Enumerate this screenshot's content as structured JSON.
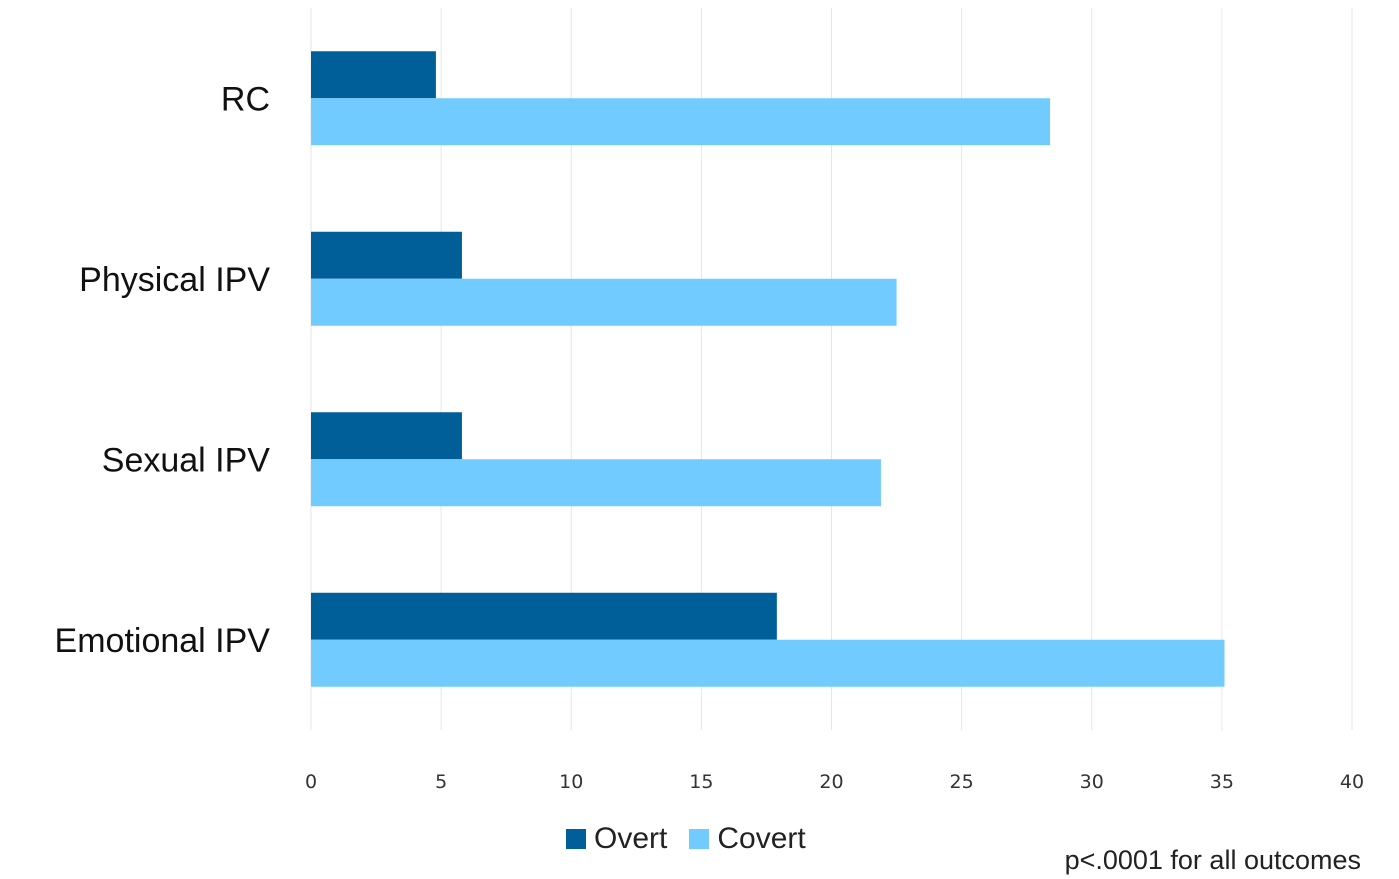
{
  "chart_data": {
    "type": "bar",
    "orientation": "horizontal",
    "categories": [
      "RC",
      "Physical IPV",
      "Sexual IPV",
      "Emotional IPV"
    ],
    "series": [
      {
        "name": "Overt",
        "color": "#005f99",
        "values": [
          4.8,
          5.8,
          5.8,
          17.9
        ]
      },
      {
        "name": "Covert",
        "color": "#72cbff",
        "values": [
          28.4,
          22.5,
          21.9,
          35.1
        ]
      }
    ],
    "xlim": [
      0,
      40
    ],
    "xticks": [
      "0",
      "5",
      "10",
      "15",
      "20",
      "25",
      "30",
      "35",
      "40"
    ],
    "grid": "vertical",
    "legend_position": "bottom-center",
    "annotation": "p<.0001 for all outcomes"
  }
}
